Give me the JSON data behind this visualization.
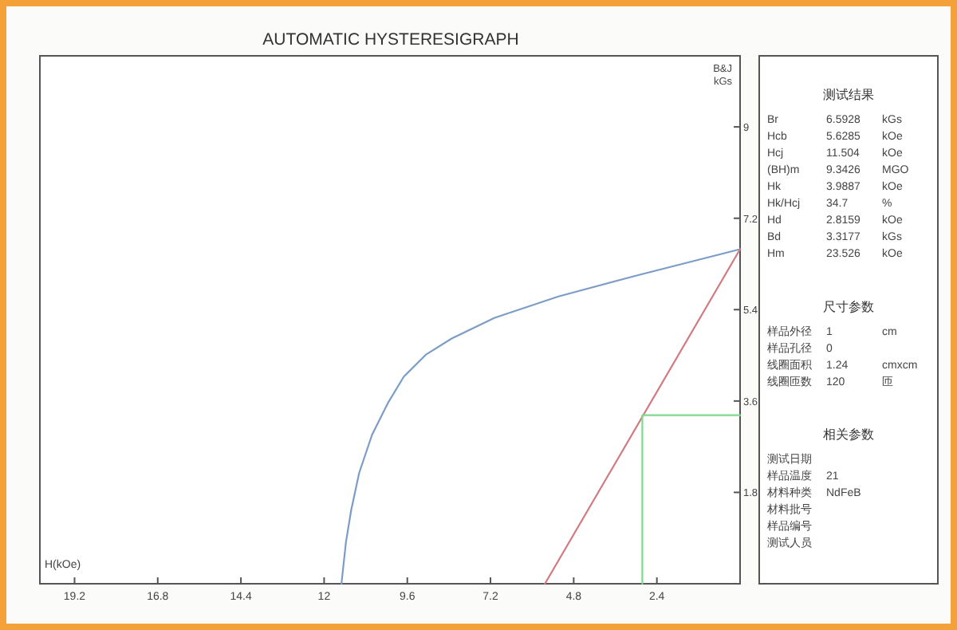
{
  "chart_data": [
    {
      "type": "line",
      "title": "AUTOMATIC HYSTERESIGRAPH",
      "xlabel": "H(kOe)",
      "ylabel": "B&J kGs",
      "xlim": [
        20.2,
        0
      ],
      "xticks": [
        19.2,
        16.8,
        14.4,
        12,
        9.6,
        7.2,
        4.8,
        2.4
      ],
      "ylim": [
        0,
        10.4
      ],
      "yticks": [
        1.8,
        3.6,
        5.4,
        7.2,
        9
      ],
      "grid": false,
      "marker": "none",
      "line_style": "solid",
      "series": [
        {
          "color": "#7c9cc8",
          "x": [
            0,
            2.94,
            5.24,
            7.08,
            8.32,
            9.07,
            9.7,
            10.16,
            10.62,
            10.99,
            11.22,
            11.37,
            11.5
          ],
          "values": [
            6.59,
            6.08,
            5.66,
            5.24,
            4.83,
            4.51,
            4.08,
            3.56,
            2.93,
            2.18,
            1.45,
            0.82,
            0
          ]
        },
        {
          "color": "#d07a80",
          "x": [
            0,
            5.63
          ],
          "values": [
            6.59,
            0
          ]
        },
        {
          "color": "#7fd98f",
          "x": [
            0,
            2.82,
            2.82
          ],
          "values": [
            3.32,
            3.32,
            0
          ]
        }
      ]
    },
    {
      "type": "other",
      "title": "测试结果",
      "annotations": [
        "Br  6.5928  kGs",
        "Hcb  5.6285  kOe",
        "Hcj  11.504  kOe",
        "(BH)m  9.3426  MGO",
        "Hk  3.9887  kOe",
        "Hk/Hcj  34.7  %",
        "Hd  2.8159  kOe",
        "Bd  3.3177  kGs",
        "Hm  23.526  kOe"
      ]
    },
    {
      "type": "other",
      "title": "尺寸参数",
      "annotations": [
        "样品外径  1  cm",
        "样品孔径  0",
        "线圈面积  1.24  cmxcm",
        "线圈匝数  120  匝"
      ]
    },
    {
      "type": "other",
      "title": "相关参数",
      "annotations": [
        "测试日期",
        "样品温度  21",
        "材料种类  NdFeB",
        "材料批号",
        "样品编号",
        "测试人员"
      ]
    }
  ]
}
